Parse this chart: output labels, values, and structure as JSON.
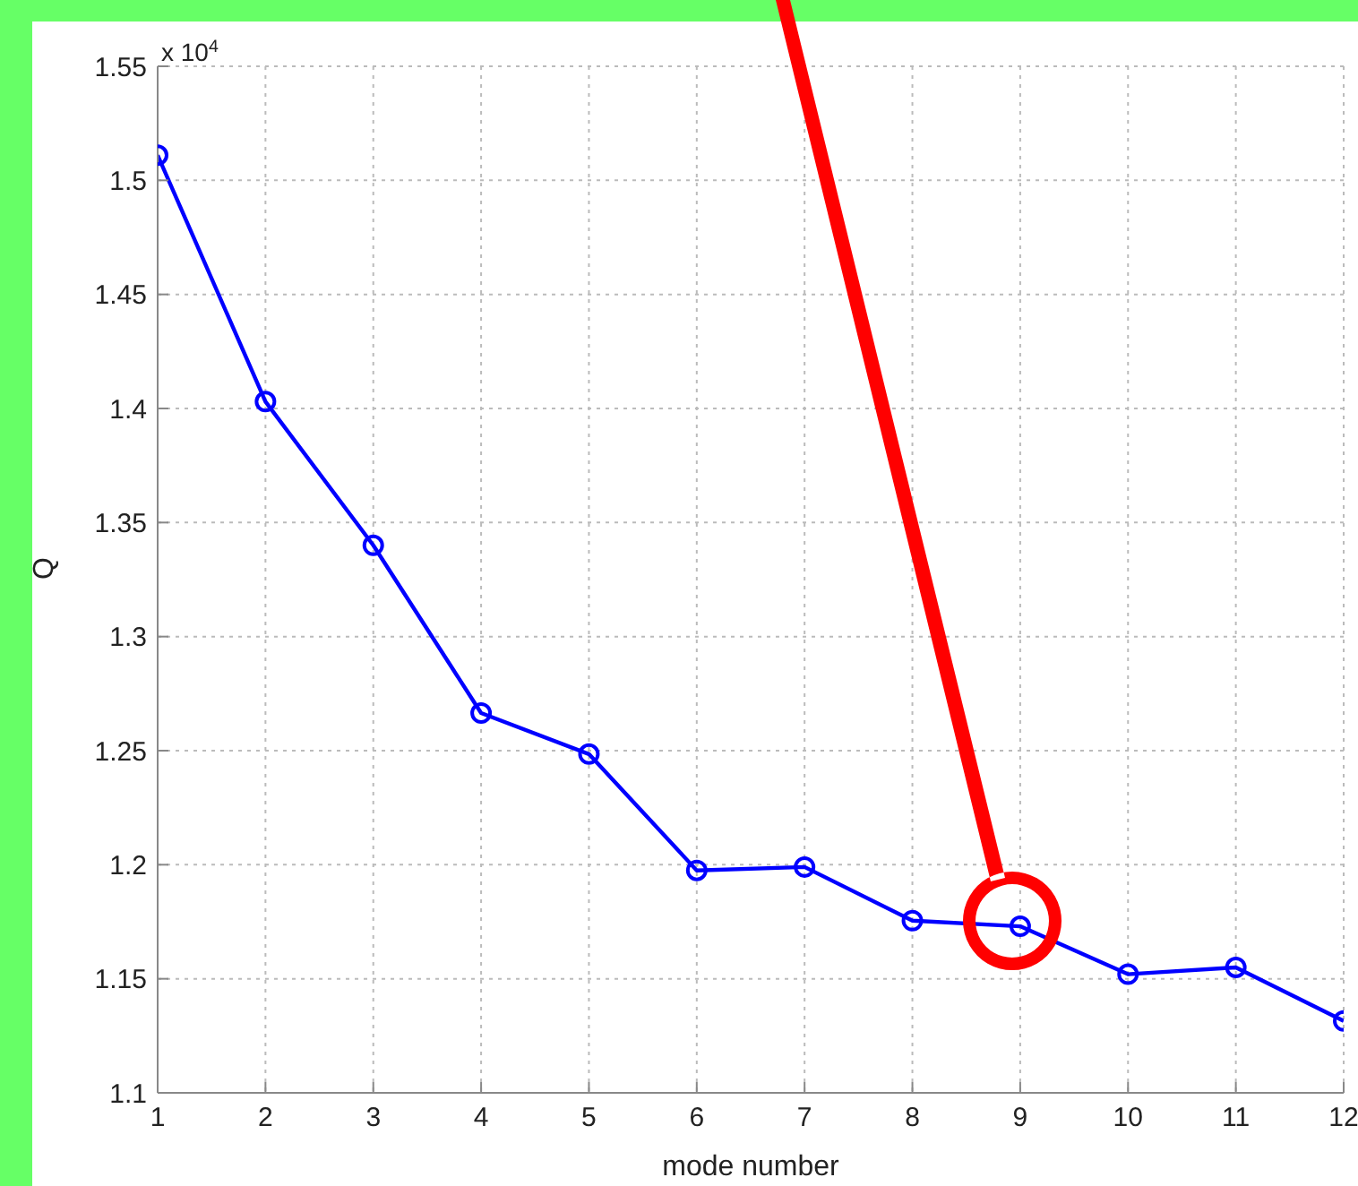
{
  "chart_data": {
    "type": "line",
    "xlabel": "mode number",
    "ylabel": "Q",
    "annotations": [
      "x 10$^{4}$"
    ],
    "x": [
      1,
      2,
      3,
      4,
      5,
      6,
      7,
      8,
      9,
      10,
      11,
      12
    ],
    "series": [
      {
        "color": "#0000ff",
        "values": [
          1.511,
          1.403,
          1.34,
          1.2665,
          1.2485,
          1.1975,
          1.199,
          1.1755,
          1.173,
          1.152,
          1.155,
          1.1315
        ]
      }
    ],
    "xlim": [
      1,
      12
    ],
    "xticks": [
      1,
      2,
      3,
      4,
      5,
      6,
      7,
      8,
      9,
      10,
      11,
      12
    ],
    "ylim": [
      1.1,
      1.55
    ],
    "yticks": [
      1.1,
      1.15,
      1.2,
      1.25,
      1.3,
      1.35,
      1.4,
      1.45,
      1.5,
      1.55
    ],
    "grid": true,
    "marker": "circle",
    "line_style": "solid",
    "legend": false
  }
}
